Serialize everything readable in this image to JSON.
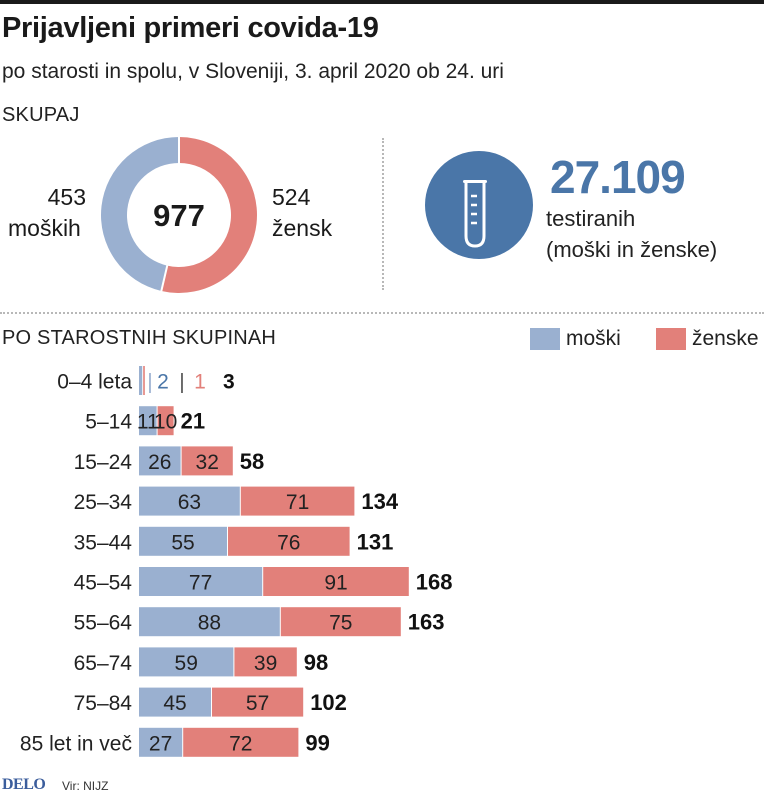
{
  "title": "Prijavljeni primeri covida-19",
  "subtitle": "po starosti in spolu, v Sloveniji, 3. april 2020 ob 24. uri",
  "summary": {
    "section_label": "SKUPAJ",
    "total": "977",
    "male_count": "453",
    "male_label": "moških",
    "female_count": "524",
    "female_label": "žensk",
    "tested_count": "27.109",
    "tested_label": "testiranih",
    "tested_note": "(moški in ženske)",
    "icon": "test-tube-icon"
  },
  "age_section_label": "PO STAROSTNIH SKUPINAH",
  "legend": {
    "male": "moški",
    "female": "ženske"
  },
  "colors": {
    "male": "#9ab0d0",
    "female": "#e2807a",
    "accent": "#4a76a8"
  },
  "footer": {
    "logo": "DELO",
    "source": "Vir: NIJZ"
  },
  "chart_data": [
    {
      "type": "pie",
      "categories": [
        "moških",
        "žensk"
      ],
      "values": [
        453,
        524
      ]
    },
    {
      "type": "bar",
      "orientation": "horizontal",
      "stacked": true,
      "categories": [
        "0–4 leta",
        "5–14",
        "15–24",
        "25–34",
        "35–44",
        "45–54",
        "55–64",
        "65–74",
        "75–84",
        "85 let in več"
      ],
      "series": [
        {
          "name": "moški",
          "values": [
            2,
            11,
            26,
            63,
            55,
            77,
            88,
            59,
            45,
            27
          ]
        },
        {
          "name": "ženske",
          "values": [
            1,
            10,
            32,
            71,
            76,
            91,
            75,
            39,
            57,
            72
          ]
        }
      ],
      "totals": [
        3,
        21,
        58,
        134,
        131,
        168,
        163,
        98,
        102,
        99
      ]
    }
  ]
}
